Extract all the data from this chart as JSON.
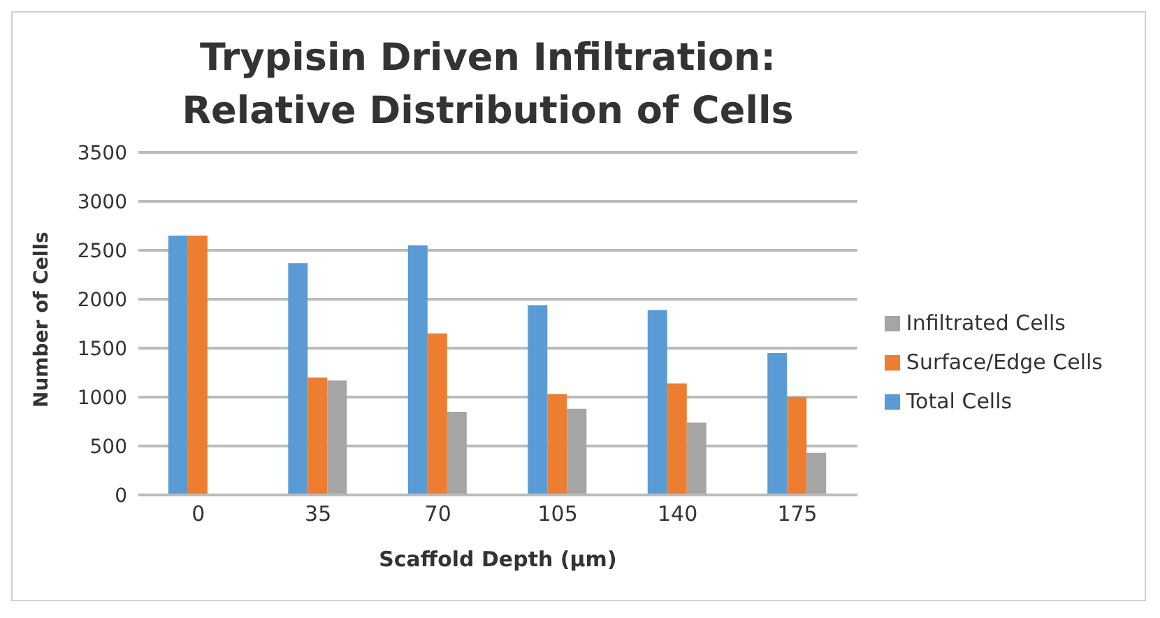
{
  "chart_data": {
    "type": "bar",
    "title": "Trypisin Driven Infiltration:\nRelative Distribution of Cells",
    "xlabel": "Scaffold Depth (µm)",
    "ylabel": "Number of Cells",
    "categories": [
      "0",
      "35",
      "70",
      "105",
      "140",
      "175"
    ],
    "series": [
      {
        "name": "Total Cells",
        "color": "#5b9bd5",
        "values": [
          2650,
          2370,
          2550,
          1940,
          1890,
          1450
        ]
      },
      {
        "name": "Surface/Edge Cells",
        "color": "#ed7d31",
        "values": [
          2650,
          1200,
          1650,
          1030,
          1140,
          1000
        ]
      },
      {
        "name": "Infiltrated Cells",
        "color": "#a5a5a5",
        "values": [
          null,
          1170,
          850,
          880,
          740,
          430
        ]
      }
    ],
    "ylim": [
      0,
      3500
    ],
    "yticks": [
      0,
      500,
      1000,
      1500,
      2000,
      2500,
      3000,
      3500
    ],
    "grid": "y",
    "legend": "right"
  }
}
